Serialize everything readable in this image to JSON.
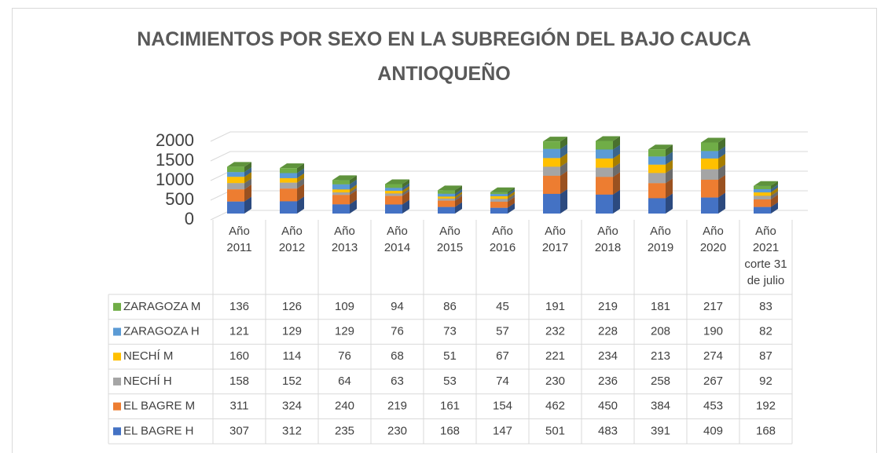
{
  "chart_data": {
    "type": "bar3d_stacked",
    "title": "NACIMIENTOS POR SEXO EN LA SUBREGIÓN DEL BAJO CAUCA ANTIOQUEÑO",
    "categories": [
      "Año 2011",
      "Año 2012",
      "Año 2013",
      "Año 2014",
      "Año 2015",
      "Año 2016",
      "Año 2017",
      "Año 2018",
      "Año 2019",
      "Año 2020",
      "Año 2021 corte 31 de julio"
    ],
    "series": [
      {
        "name": "EL BAGRE H",
        "color": "#4472c4",
        "values": [
          307,
          312,
          235,
          230,
          168,
          147,
          501,
          483,
          391,
          409,
          168
        ]
      },
      {
        "name": "EL BAGRE M",
        "color": "#ed7d31",
        "values": [
          311,
          324,
          240,
          219,
          161,
          154,
          462,
          450,
          384,
          453,
          192
        ]
      },
      {
        "name": "NECHÍ H",
        "color": "#a5a5a5",
        "values": [
          158,
          152,
          64,
          63,
          53,
          74,
          230,
          236,
          258,
          267,
          92
        ]
      },
      {
        "name": "NECHÍ M",
        "color": "#ffc000",
        "values": [
          160,
          114,
          76,
          68,
          51,
          67,
          221,
          234,
          213,
          274,
          87
        ]
      },
      {
        "name": "ZARAGOZA H",
        "color": "#5b9bd5",
        "values": [
          121,
          129,
          129,
          76,
          73,
          57,
          232,
          228,
          208,
          190,
          82
        ]
      },
      {
        "name": "ZARAGOZA M",
        "color": "#70ad47",
        "values": [
          136,
          126,
          109,
          94,
          86,
          45,
          191,
          219,
          181,
          217,
          83
        ]
      }
    ],
    "ylim": [
      0,
      2000
    ],
    "yticks": [
      0,
      500,
      1000,
      1500,
      2000
    ],
    "grid": true,
    "data_table": true
  }
}
